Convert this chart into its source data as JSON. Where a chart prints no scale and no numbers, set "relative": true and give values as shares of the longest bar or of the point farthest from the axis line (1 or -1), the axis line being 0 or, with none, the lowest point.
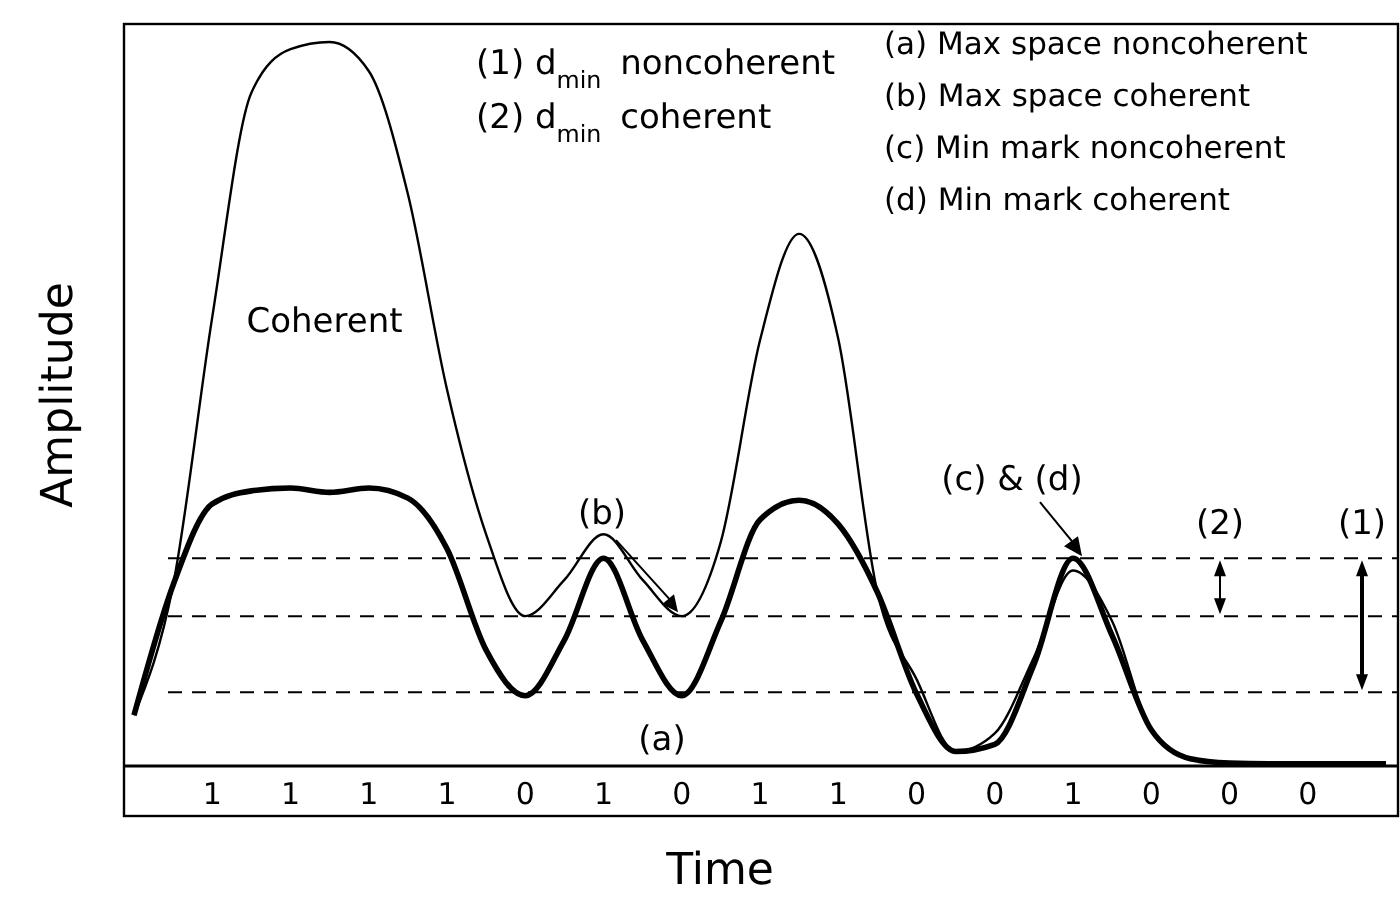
{
  "chart_data": {
    "type": "line",
    "relative": true,
    "xlabel": "Time",
    "ylabel": "Amplitude",
    "categories": [
      null,
      null,
      "1",
      null,
      "1",
      null,
      "1",
      null,
      "1",
      null,
      "0",
      null,
      "1",
      null,
      "0",
      null,
      "1",
      null,
      "1",
      null,
      "0",
      null,
      "0",
      null,
      "1",
      null,
      "0",
      null,
      "0",
      null,
      "0",
      null,
      null
    ],
    "series": [
      {
        "name": "Coherent",
        "color": "#000000",
        "values": [
          0.07,
          0.25,
          0.62,
          0.93,
          0.99,
          1.0,
          0.96,
          0.79,
          0.52,
          0.32,
          0.207,
          0.257,
          0.32,
          0.257,
          0.207,
          0.31,
          0.588,
          0.735,
          0.59,
          0.24,
          0.12,
          0.02,
          0.045,
          0.15,
          0.27,
          0.2,
          0.05,
          0.01,
          0.004,
          0.003,
          0.003,
          0.003,
          0.003
        ]
      },
      {
        "color": "#000000",
        "values": [
          0.07,
          0.25,
          0.362,
          0.38,
          0.384,
          0.378,
          0.384,
          0.37,
          0.3,
          0.16,
          0.097,
          0.174,
          0.287,
          0.174,
          0.097,
          0.2,
          0.34,
          0.367,
          0.334,
          0.24,
          0.1,
          0.02,
          0.03,
          0.14,
          0.287,
          0.18,
          0.05,
          0.01,
          0.004,
          0.003,
          0.003,
          0.003,
          0.003
        ]
      }
    ],
    "ref_lines": [
      {
        "axis": "y",
        "value": 0.287,
        "line_style": "dashed"
      },
      {
        "axis": "y",
        "value": 0.207,
        "line_style": "dashed"
      },
      {
        "axis": "y",
        "value": 0.102,
        "line_style": "dashed"
      }
    ],
    "annotations": [
      "(1) d$_{min}$ noncoherent",
      "(2) d$_{min}$ coherent",
      "(a) Max space noncoherent",
      "(b) Max space coherent",
      "(c) Min mark noncoherent",
      "(d) Min mark coherent",
      {
        "text": "(b)",
        "y": 0.207
      },
      {
        "text": "(a)",
        "y": 0.097
      },
      {
        "text": "(c) & (d)",
        "y": 0.287
      },
      {
        "text": "(2)",
        "y": 0.287
      },
      {
        "text": "(1)",
        "y": 0.287
      }
    ],
    "legend": false,
    "marker": "none",
    "line_style": "solid"
  }
}
